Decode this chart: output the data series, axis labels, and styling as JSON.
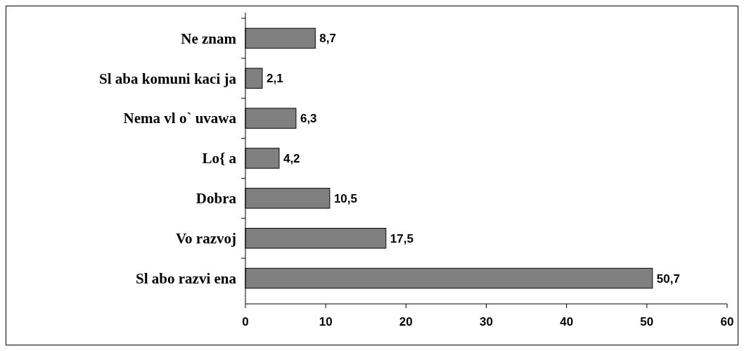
{
  "chart_data": {
    "type": "bar",
    "orientation": "horizontal",
    "categories": [
      "Ne znam",
      "Sl aba komuni kaci ja",
      "Nema vl o` uvawa",
      "Lo{ a",
      "Dobra",
      "Vo razvoj",
      "Sl abo razvi ena"
    ],
    "values": [
      8.7,
      2.1,
      6.3,
      4.2,
      10.5,
      17.5,
      50.7
    ],
    "value_labels": [
      "8,7",
      "2,1",
      "6,3",
      "4,2",
      "10,5",
      "17,5",
      "50,7"
    ],
    "color": "#808080",
    "xlim": [
      0,
      60
    ],
    "xticks": [
      0,
      10,
      20,
      30,
      40,
      50,
      60
    ],
    "grid": false
  }
}
